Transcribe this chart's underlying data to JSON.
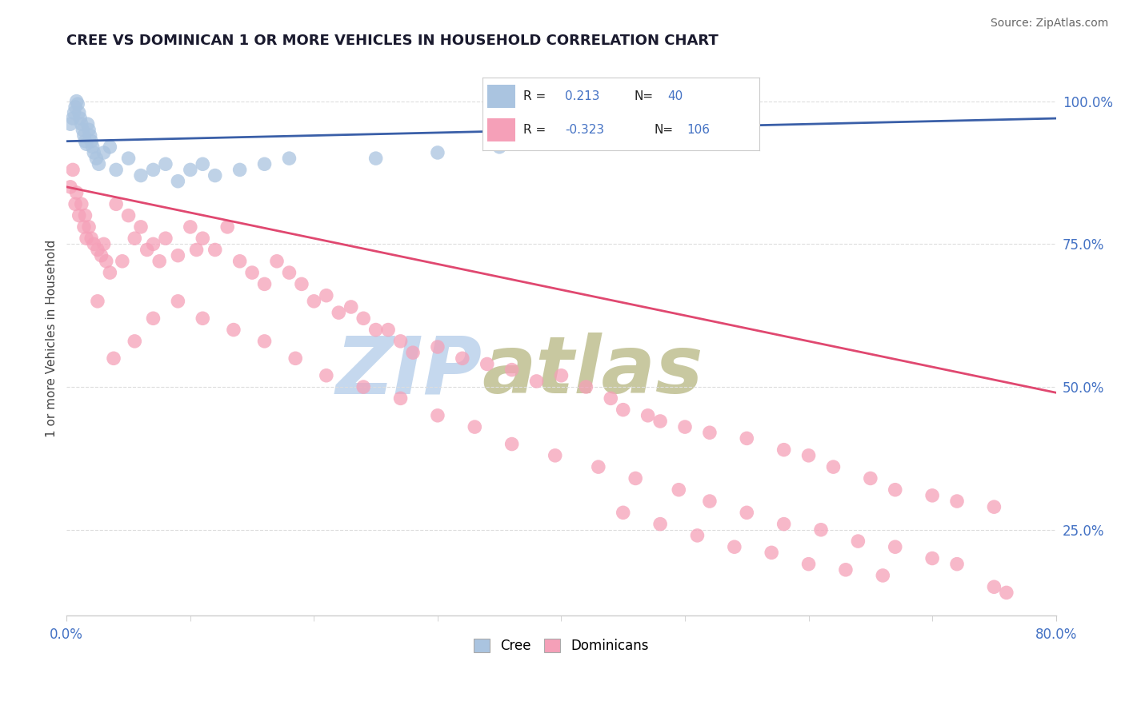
{
  "title": "CREE VS DOMINICAN 1 OR MORE VEHICLES IN HOUSEHOLD CORRELATION CHART",
  "source": "Source: ZipAtlas.com",
  "ylabel": "1 or more Vehicles in Household",
  "xlim": [
    0.0,
    80.0
  ],
  "ylim": [
    10.0,
    107.0
  ],
  "cree_color": "#aac4e0",
  "dom_color": "#f5a0b8",
  "cree_line_color": "#3a5fa8",
  "dom_line_color": "#e04870",
  "watermark_zip": "ZIP",
  "watermark_atlas": "atlas",
  "watermark_color_zip": "#c5d8ee",
  "watermark_color_atlas": "#c8c8a0",
  "background_color": "#ffffff",
  "cree_x": [
    0.3,
    0.5,
    0.6,
    0.7,
    0.8,
    0.9,
    1.0,
    1.1,
    1.2,
    1.3,
    1.4,
    1.5,
    1.6,
    1.7,
    1.8,
    1.9,
    2.0,
    2.1,
    2.2,
    2.4,
    2.6,
    3.0,
    3.5,
    4.0,
    5.0,
    6.0,
    7.0,
    8.0,
    9.0,
    10.0,
    11.0,
    12.0,
    14.0,
    16.0,
    18.0,
    25.0,
    30.0,
    35.0,
    40.0,
    55.0
  ],
  "cree_y": [
    96.0,
    97.0,
    98.0,
    99.0,
    100.0,
    99.5,
    98.0,
    97.0,
    96.0,
    95.0,
    94.0,
    93.0,
    92.5,
    96.0,
    95.0,
    94.0,
    93.0,
    92.0,
    91.0,
    90.0,
    89.0,
    91.0,
    92.0,
    88.0,
    90.0,
    87.0,
    88.0,
    89.0,
    86.0,
    88.0,
    89.0,
    87.0,
    88.0,
    89.0,
    90.0,
    90.0,
    91.0,
    92.0,
    93.0,
    96.0
  ],
  "dom_x": [
    0.3,
    0.5,
    0.7,
    0.8,
    1.0,
    1.2,
    1.4,
    1.5,
    1.6,
    1.8,
    2.0,
    2.2,
    2.5,
    2.8,
    3.0,
    3.2,
    3.5,
    4.0,
    4.5,
    5.0,
    5.5,
    6.0,
    6.5,
    7.0,
    7.5,
    8.0,
    9.0,
    10.0,
    10.5,
    11.0,
    12.0,
    13.0,
    14.0,
    15.0,
    16.0,
    17.0,
    18.0,
    19.0,
    20.0,
    21.0,
    22.0,
    23.0,
    24.0,
    25.0,
    26.0,
    27.0,
    28.0,
    30.0,
    32.0,
    34.0,
    36.0,
    38.0,
    40.0,
    42.0,
    44.0,
    45.0,
    47.0,
    48.0,
    50.0,
    52.0,
    55.0,
    58.0,
    60.0,
    62.0,
    65.0,
    67.0,
    70.0,
    72.0,
    75.0,
    2.5,
    3.8,
    5.5,
    7.0,
    9.0,
    11.0,
    13.5,
    16.0,
    18.5,
    21.0,
    24.0,
    27.0,
    30.0,
    33.0,
    36.0,
    39.5,
    43.0,
    46.0,
    49.5,
    52.0,
    55.0,
    58.0,
    61.0,
    64.0,
    67.0,
    70.0,
    72.0,
    45.0,
    48.0,
    51.0,
    54.0,
    57.0,
    60.0,
    63.0,
    66.0,
    75.0,
    76.0
  ],
  "dom_y": [
    85.0,
    88.0,
    82.0,
    84.0,
    80.0,
    82.0,
    78.0,
    80.0,
    76.0,
    78.0,
    76.0,
    75.0,
    74.0,
    73.0,
    75.0,
    72.0,
    70.0,
    82.0,
    72.0,
    80.0,
    76.0,
    78.0,
    74.0,
    75.0,
    72.0,
    76.0,
    73.0,
    78.0,
    74.0,
    76.0,
    74.0,
    78.0,
    72.0,
    70.0,
    68.0,
    72.0,
    70.0,
    68.0,
    65.0,
    66.0,
    63.0,
    64.0,
    62.0,
    60.0,
    60.0,
    58.0,
    56.0,
    57.0,
    55.0,
    54.0,
    53.0,
    51.0,
    52.0,
    50.0,
    48.0,
    46.0,
    45.0,
    44.0,
    43.0,
    42.0,
    41.0,
    39.0,
    38.0,
    36.0,
    34.0,
    32.0,
    31.0,
    30.0,
    29.0,
    65.0,
    55.0,
    58.0,
    62.0,
    65.0,
    62.0,
    60.0,
    58.0,
    55.0,
    52.0,
    50.0,
    48.0,
    45.0,
    43.0,
    40.0,
    38.0,
    36.0,
    34.0,
    32.0,
    30.0,
    28.0,
    26.0,
    25.0,
    23.0,
    22.0,
    20.0,
    19.0,
    28.0,
    26.0,
    24.0,
    22.0,
    21.0,
    19.0,
    18.0,
    17.0,
    15.0,
    14.0
  ]
}
